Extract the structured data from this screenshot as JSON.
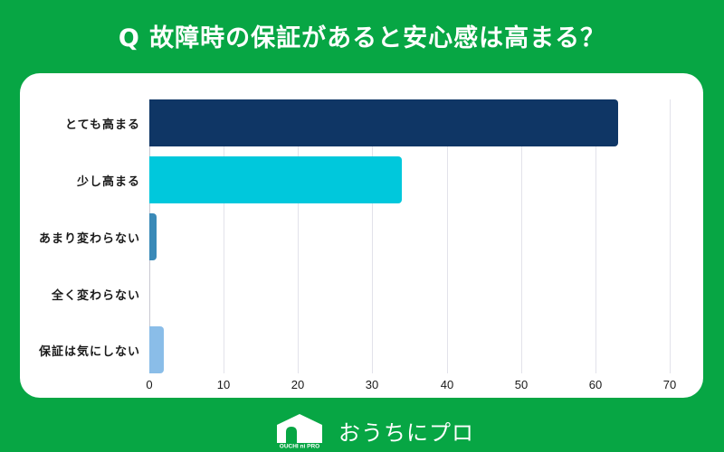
{
  "header": {
    "title": "Q 故障時の保証があると安心感は高まる？"
  },
  "footer": {
    "logo_text": "OUCHI ni PRO",
    "brand": "おうちにプロ"
  },
  "colors": {
    "background": "#07a644",
    "card": "#ffffff"
  },
  "chart_data": {
    "type": "bar",
    "orientation": "horizontal",
    "title": "Q 故障時の保証があると安心感は高まる？",
    "categories": [
      "とても高まる",
      "少し高まる",
      "あまり変わらない",
      "全く変わらない",
      "保証は気にしない"
    ],
    "values": [
      63,
      34,
      1,
      0,
      2
    ],
    "bar_colors": [
      "#0f3665",
      "#00c8dc",
      "#3a8ab8",
      "#5aa0d8",
      "#8abde8"
    ],
    "xlabel": "",
    "ylabel": "",
    "xlim": [
      0,
      70
    ],
    "x_ticks": [
      "0",
      "10",
      "20",
      "30",
      "40",
      "50",
      "60",
      "70"
    ],
    "grid": true,
    "legend": null
  }
}
